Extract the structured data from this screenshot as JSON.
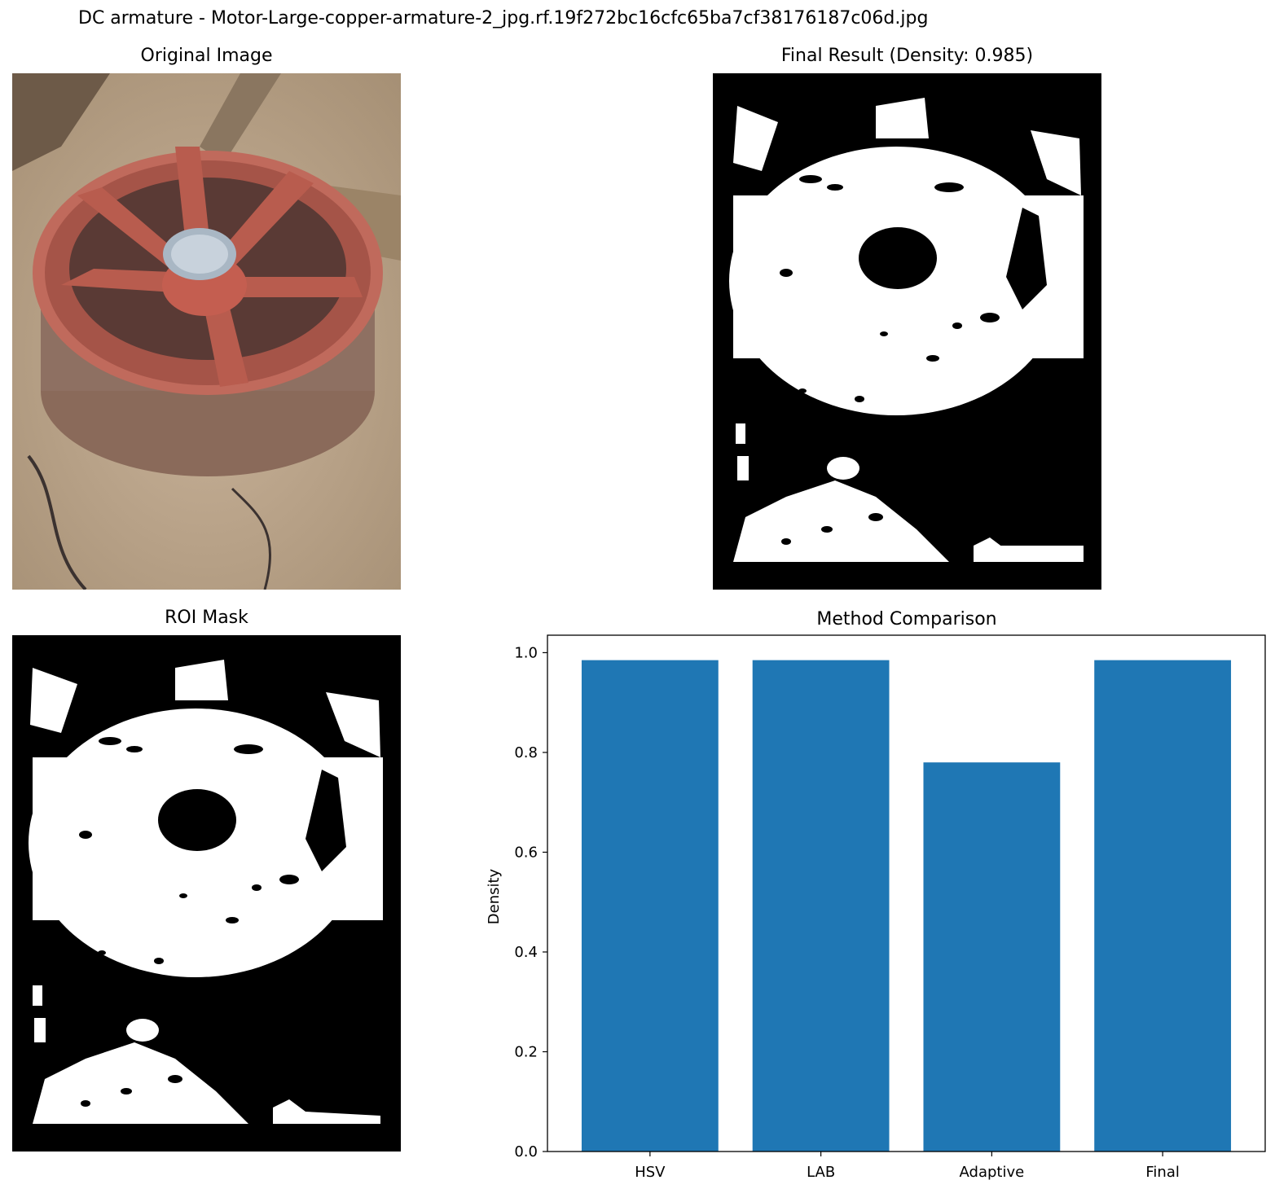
{
  "suptitle": "DC armature - Motor-Large-copper-armature-2_jpg.rf.19f272bc16cfc65ba7cf38176187c06d.jpg",
  "panels": {
    "original_title": "Original Image",
    "final_title": "Final Result (Density: 0.985)",
    "roi_title": "ROI Mask"
  },
  "colors": {
    "bar": "#1f77b4",
    "mask_fg": "#ffffff",
    "mask_bg": "#000000"
  },
  "chart_data": {
    "type": "bar",
    "title": "Method Comparison",
    "categories": [
      "HSV",
      "LAB",
      "Adaptive",
      "Final"
    ],
    "values": [
      0.985,
      0.985,
      0.78,
      0.985
    ],
    "xlabel": "",
    "ylabel": "Density",
    "ylim": [
      0,
      1.035
    ],
    "yticks": [
      0.0,
      0.2,
      0.4,
      0.6,
      0.8,
      1.0
    ],
    "ytick_labels": [
      "0.0",
      "0.2",
      "0.4",
      "0.6",
      "0.8",
      "1.0"
    ],
    "grid": false,
    "legend": "none"
  }
}
